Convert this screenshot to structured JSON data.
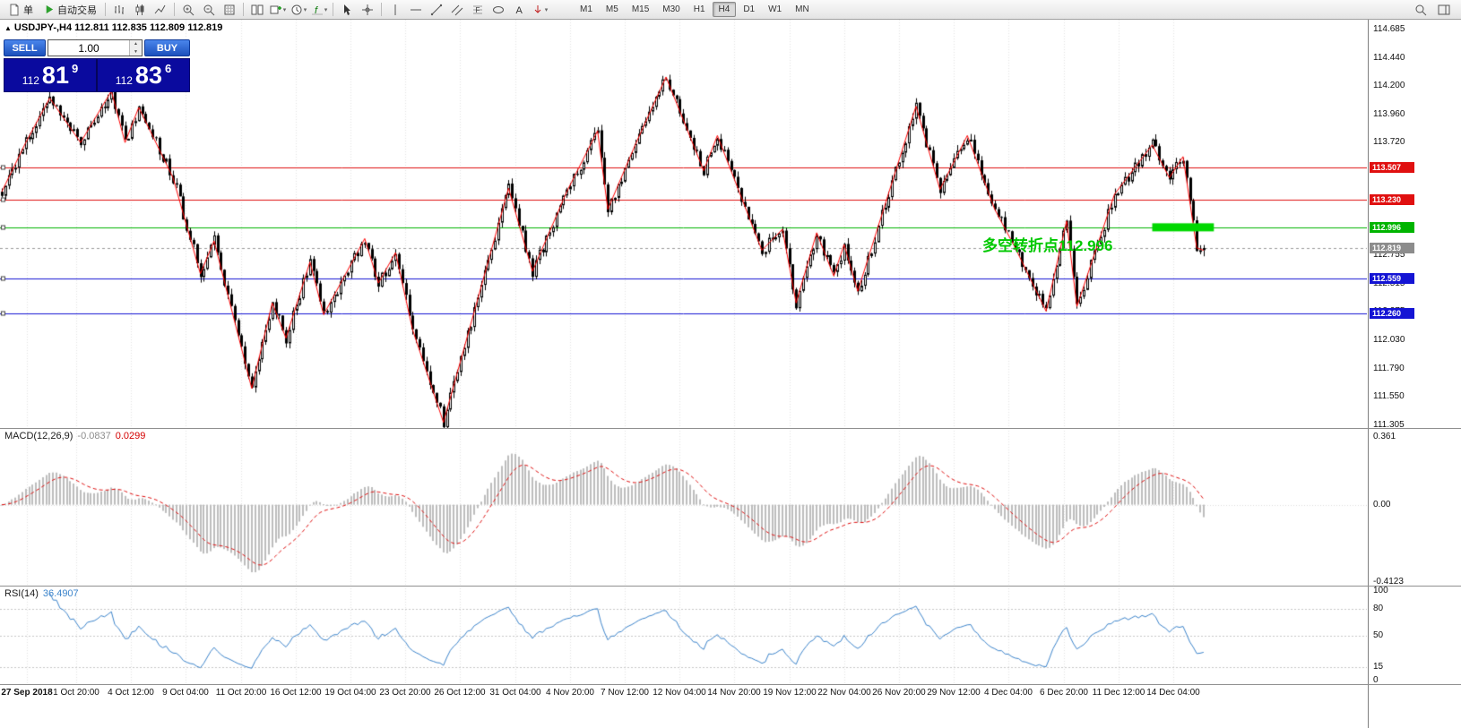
{
  "toolbar": {
    "order_button_label": "单",
    "autotrade_button_label": "自动交易",
    "timeframes": [
      "M1",
      "M5",
      "M15",
      "M30",
      "H1",
      "H4",
      "D1",
      "W1",
      "MN"
    ],
    "active_timeframe": "H4",
    "icons": [
      "order-icon",
      "autotrade-icon",
      "bar-chart-icon",
      "candlestick-icon",
      "line-chart-icon",
      "zoom-in-icon",
      "zoom-out-icon",
      "grid-icon",
      "tile-windows-icon",
      "new-order-icon",
      "clock-icon",
      "indicators-icon",
      "cursor-icon",
      "crosshair-icon",
      "vertical-line-icon",
      "horizontal-line-icon",
      "trendline-icon",
      "channel-icon",
      "fibonacci-icon",
      "shapes-icon",
      "text-icon",
      "arrows-icon",
      "search-icon",
      "panels-icon"
    ]
  },
  "quote_panel": {
    "collapse_arrow": "▲",
    "symbol_line": "USDJPY-,H4  112.811 112.835 112.809 112.819",
    "sell_label": "SELL",
    "buy_label": "BUY",
    "lot_value": "1.00",
    "lot_up": "▲",
    "lot_down": "▼",
    "sell_price": {
      "prefix": "112",
      "big": "81",
      "sup": "9"
    },
    "buy_price": {
      "prefix": "112",
      "big": "83",
      "sup": "6"
    }
  },
  "chart_data": {
    "type": "candlestick",
    "symbol": "USDJPY-",
    "period": "H4",
    "ohlc_display": {
      "open": "112.811",
      "high": "112.835",
      "low": "112.809",
      "close": "112.819"
    },
    "price_axis": {
      "max": 114.685,
      "min": 111.305,
      "ticks": [
        "114.685",
        "114.440",
        "114.200",
        "113.960",
        "113.720",
        "113.480",
        "113.240",
        "112.995",
        "112.755",
        "112.515",
        "112.275",
        "112.030",
        "111.790",
        "111.550",
        "111.305"
      ]
    },
    "time_labels": [
      "27 Sep 2018",
      "1 Oct 20:00",
      "4 Oct 12:00",
      "9 Oct 04:00",
      "11 Oct 20:00",
      "16 Oct 12:00",
      "19 Oct 04:00",
      "23 Oct 20:00",
      "26 Oct 12:00",
      "31 Oct 04:00",
      "4 Nov 20:00",
      "7 Nov 12:00",
      "12 Nov 04:00",
      "14 Nov 20:00",
      "19 Nov 12:00",
      "22 Nov 04:00",
      "26 Nov 20:00",
      "29 Nov 12:00",
      "4 Dec 04:00",
      "6 Dec 20:00",
      "11 Dec 12:00",
      "14 Dec 04:00"
    ],
    "levels": [
      {
        "price": 113.507,
        "label": "113.507",
        "color": "#e01010"
      },
      {
        "price": 113.23,
        "label": "113.230",
        "color": "#e01010"
      },
      {
        "price": 112.996,
        "label": "112.996",
        "color": "#00b400"
      },
      {
        "price": 112.559,
        "label": "112.559",
        "color": "#1414d4"
      },
      {
        "price": 112.26,
        "label": "112.260",
        "color": "#1414d4"
      }
    ],
    "current_price": {
      "price": 112.819,
      "label": "112.819",
      "color": "#8c8c8c"
    },
    "zigzag": {
      "color": "#ff0000",
      "points": [
        [
          0,
          113.3
        ],
        [
          7,
          113.72
        ],
        [
          14,
          114.1
        ],
        [
          23,
          113.72
        ],
        [
          32,
          114.16
        ],
        [
          36,
          113.72
        ],
        [
          40,
          114.02
        ],
        [
          50,
          113.42
        ],
        [
          58,
          112.6
        ],
        [
          62,
          112.88
        ],
        [
          73,
          111.62
        ],
        [
          79,
          112.35
        ],
        [
          83,
          112.05
        ],
        [
          90,
          112.7
        ],
        [
          94,
          112.25
        ],
        [
          106,
          112.9
        ],
        [
          110,
          112.52
        ],
        [
          115,
          112.78
        ],
        [
          120,
          112.12
        ],
        [
          129,
          111.33
        ],
        [
          148,
          113.33
        ],
        [
          155,
          112.62
        ],
        [
          165,
          113.3
        ],
        [
          174,
          113.82
        ],
        [
          177,
          113.15
        ],
        [
          185,
          113.7
        ],
        [
          194,
          114.28
        ],
        [
          205,
          113.48
        ],
        [
          209,
          113.78
        ],
        [
          222,
          112.8
        ],
        [
          228,
          112.98
        ],
        [
          232,
          112.35
        ],
        [
          238,
          112.95
        ],
        [
          243,
          112.58
        ],
        [
          246,
          112.85
        ],
        [
          250,
          112.45
        ],
        [
          267,
          114.03
        ],
        [
          274,
          113.32
        ],
        [
          282,
          113.78
        ],
        [
          290,
          113.15
        ],
        [
          296,
          112.82
        ],
        [
          305,
          112.28
        ],
        [
          311,
          113.05
        ],
        [
          314,
          112.32
        ],
        [
          325,
          113.28
        ],
        [
          336,
          113.7
        ],
        [
          341,
          113.42
        ],
        [
          345,
          113.6
        ],
        [
          349,
          112.82
        ],
        [
          351,
          112.8
        ]
      ]
    },
    "highlight_segment": {
      "price": 112.996,
      "from_index": 336,
      "to_index": 354,
      "thickness": 9,
      "color": "#00d800"
    },
    "annotation": {
      "text": "多空转折点112.996",
      "color": "#00c800"
    },
    "candles": {
      "count": 352,
      "seed": 20181214,
      "noise": 0.1,
      "wick": 0.05
    },
    "macd": {
      "label": "MACD(12,26,9)",
      "value_main": "-0.0837",
      "value_signal": "0.0299",
      "axis_ticks": [
        "0.361",
        "0.00",
        "-0.4123"
      ],
      "axis_max": 0.361,
      "axis_min": -0.4123,
      "histogram_color": "#bdbdbd",
      "signal_color": "#e01010"
    },
    "rsi": {
      "label": "RSI(14)",
      "value": "36.4907",
      "axis_ticks": [
        "100",
        "80",
        "50",
        "15",
        "0"
      ],
      "level_lines": [
        80,
        50,
        15
      ],
      "color": "#3d85cc"
    }
  }
}
